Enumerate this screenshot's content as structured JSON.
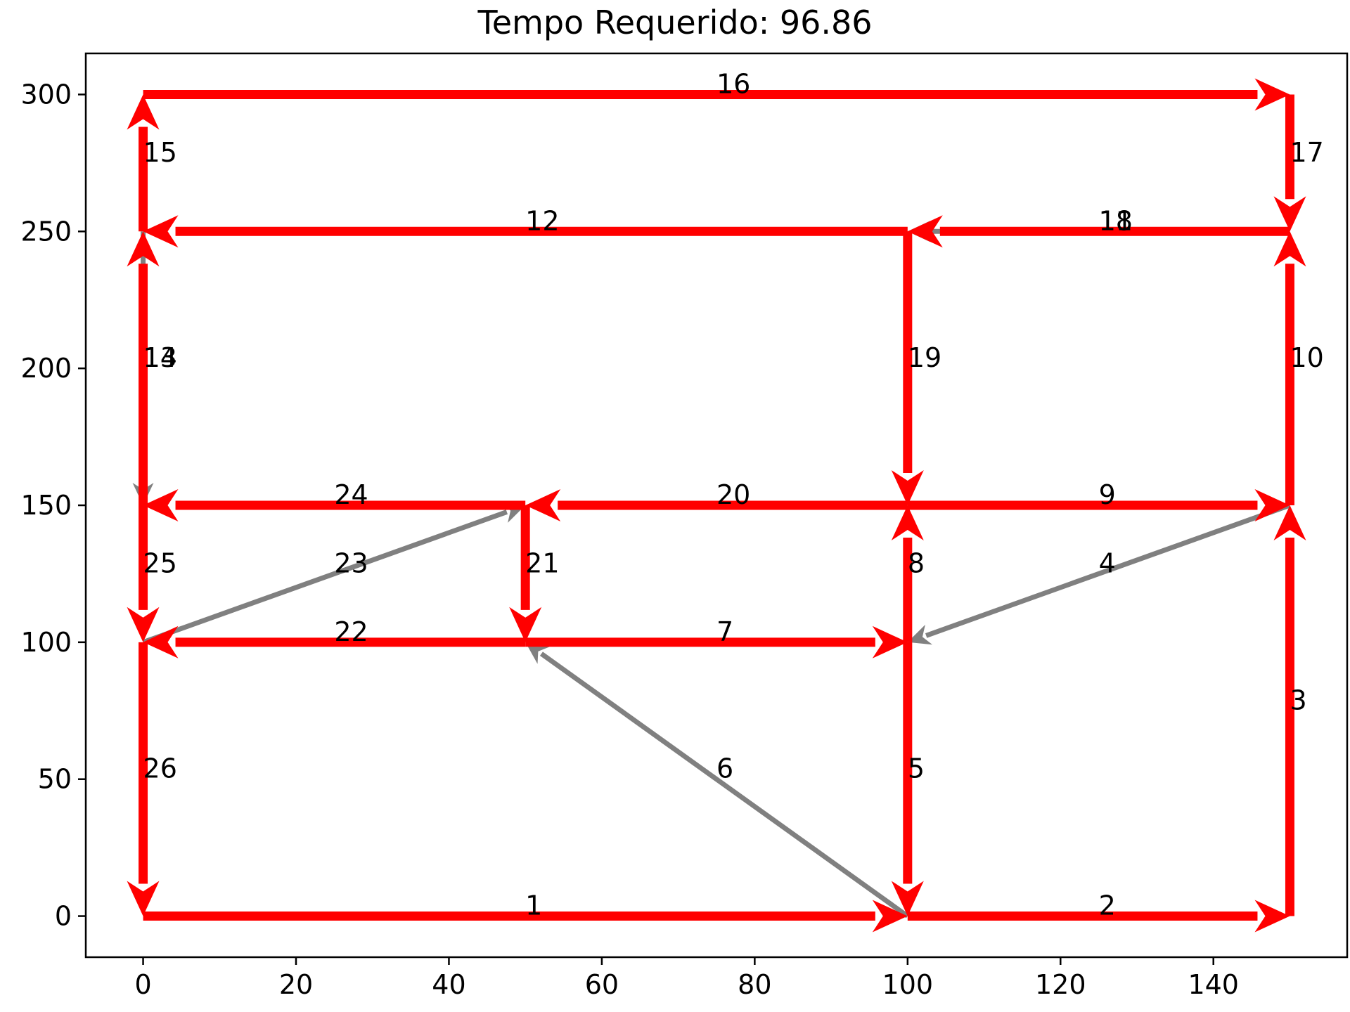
{
  "chart_data": {
    "type": "directed-graph",
    "title": "Tempo Requerido: 96.86",
    "xlim": [
      -7.5,
      157.5
    ],
    "ylim": [
      -15,
      315
    ],
    "xticks": [
      0,
      20,
      40,
      60,
      80,
      100,
      120,
      140
    ],
    "yticks": [
      0,
      50,
      100,
      150,
      200,
      250,
      300
    ],
    "grid": false,
    "colors": {
      "highlighted": "#ff0000",
      "normal": "#808080"
    },
    "edges": [
      {
        "label": "1",
        "from": [
          0,
          0
        ],
        "to": [
          100,
          0
        ],
        "highlighted": true
      },
      {
        "label": "2",
        "from": [
          100,
          0
        ],
        "to": [
          150,
          0
        ],
        "highlighted": true
      },
      {
        "label": "3",
        "from": [
          150,
          0
        ],
        "to": [
          150,
          150
        ],
        "highlighted": true
      },
      {
        "label": "4",
        "from": [
          150,
          150
        ],
        "to": [
          100,
          100
        ],
        "highlighted": false
      },
      {
        "label": "5",
        "from": [
          100,
          100
        ],
        "to": [
          100,
          0
        ],
        "highlighted": true
      },
      {
        "label": "6",
        "from": [
          100,
          0
        ],
        "to": [
          50,
          100
        ],
        "highlighted": false
      },
      {
        "label": "7",
        "from": [
          50,
          100
        ],
        "to": [
          100,
          100
        ],
        "highlighted": true
      },
      {
        "label": "8",
        "from": [
          100,
          100
        ],
        "to": [
          100,
          150
        ],
        "highlighted": true
      },
      {
        "label": "9",
        "from": [
          100,
          150
        ],
        "to": [
          150,
          150
        ],
        "highlighted": true
      },
      {
        "label": "10",
        "from": [
          150,
          150
        ],
        "to": [
          150,
          250
        ],
        "highlighted": true
      },
      {
        "label": "11",
        "from": [
          150,
          250
        ],
        "to": [
          100,
          250
        ],
        "highlighted": true
      },
      {
        "label": "12",
        "from": [
          100,
          250
        ],
        "to": [
          0,
          250
        ],
        "highlighted": true
      },
      {
        "label": "13",
        "from": [
          0,
          250
        ],
        "to": [
          0,
          150
        ],
        "highlighted": false
      },
      {
        "label": "14",
        "from": [
          0,
          150
        ],
        "to": [
          0,
          250
        ],
        "highlighted": true
      },
      {
        "label": "15",
        "from": [
          0,
          250
        ],
        "to": [
          0,
          300
        ],
        "highlighted": true
      },
      {
        "label": "16",
        "from": [
          0,
          300
        ],
        "to": [
          150,
          300
        ],
        "highlighted": true
      },
      {
        "label": "17",
        "from": [
          150,
          300
        ],
        "to": [
          150,
          250
        ],
        "highlighted": true
      },
      {
        "label": "18",
        "from": [
          150,
          250
        ],
        "to": [
          100,
          250
        ],
        "highlighted": false
      },
      {
        "label": "19",
        "from": [
          100,
          250
        ],
        "to": [
          100,
          150
        ],
        "highlighted": true
      },
      {
        "label": "20",
        "from": [
          100,
          150
        ],
        "to": [
          50,
          150
        ],
        "highlighted": true
      },
      {
        "label": "21",
        "from": [
          50,
          150
        ],
        "to": [
          50,
          100
        ],
        "highlighted": true
      },
      {
        "label": "22",
        "from": [
          50,
          100
        ],
        "to": [
          0,
          100
        ],
        "highlighted": true
      },
      {
        "label": "23",
        "from": [
          0,
          100
        ],
        "to": [
          50,
          150
        ],
        "highlighted": false
      },
      {
        "label": "24",
        "from": [
          50,
          150
        ],
        "to": [
          0,
          150
        ],
        "highlighted": true
      },
      {
        "label": "25",
        "from": [
          0,
          150
        ],
        "to": [
          0,
          100
        ],
        "highlighted": true
      },
      {
        "label": "26",
        "from": [
          0,
          100
        ],
        "to": [
          0,
          0
        ],
        "highlighted": true
      }
    ]
  }
}
